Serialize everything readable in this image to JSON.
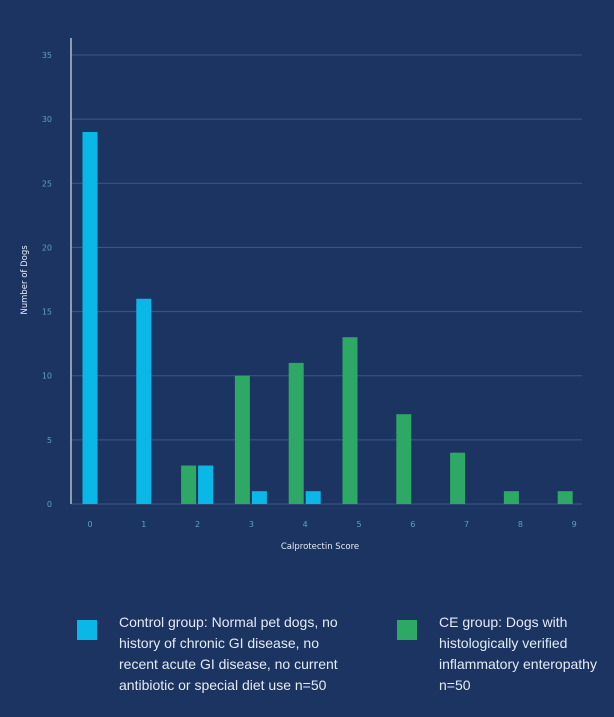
{
  "colors": {
    "background": "#1c3461",
    "control": "#0ab8e8",
    "ce": "#2ea865",
    "grid": "#3d5888",
    "axis": "#c9d4e4",
    "tick": "#5f9fc4"
  },
  "chart_data": {
    "type": "bar",
    "title": "",
    "xlabel": "Calprotectin Score",
    "ylabel": "Number of Dogs",
    "categories": [
      "0",
      "1",
      "2",
      "3",
      "4",
      "5",
      "6",
      "7",
      "8",
      "9"
    ],
    "ylim": [
      0,
      35
    ],
    "yticks": [
      0,
      5,
      10,
      15,
      20,
      25,
      30,
      35
    ],
    "grid": true,
    "legend_position": "bottom",
    "series": [
      {
        "name": "Control group: Normal pet dogs, no history of chronic GI disease, no recent acute GI disease, no current antibiotic or special diet use n=50",
        "color": "#0ab8e8",
        "values": [
          29,
          16,
          3,
          1,
          1,
          0,
          0,
          0,
          0,
          0
        ]
      },
      {
        "name": "CE group: Dogs with histologically verified inflammatory enteropathy n=50",
        "color": "#2ea865",
        "values": [
          0,
          0,
          3,
          10,
          11,
          13,
          7,
          4,
          1,
          1
        ]
      }
    ]
  }
}
